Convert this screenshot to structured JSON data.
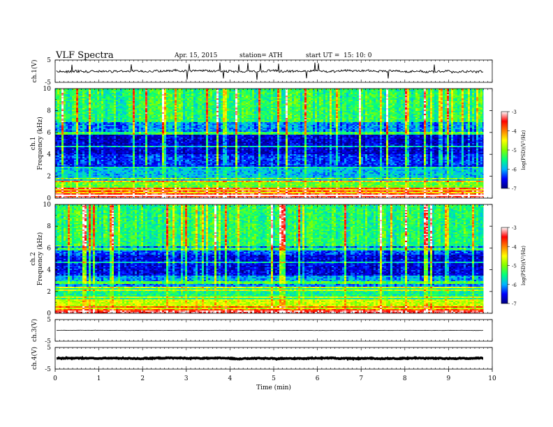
{
  "header": {
    "title": "VLF Spectra",
    "date": "Apr. 15, 2015",
    "station": "station= ATH",
    "start_label": "start  UT  =",
    "start_time": "15: 10: 0"
  },
  "colorbar": {
    "label": "log(PSD)(V²/Hz)",
    "ticks": [
      "-3",
      "-4",
      "-5",
      "-6",
      "-7"
    ],
    "range": [
      -7,
      -3
    ],
    "colors": [
      "#000080",
      "#0000ff",
      "#00b4ff",
      "#00ff80",
      "#80ff00",
      "#ffff00",
      "#ff8000",
      "#ff0000",
      "#ffffff"
    ]
  },
  "chart_data": [
    {
      "type": "line",
      "panel": "ch1-waveform",
      "ylabel": "ch.1(V)",
      "ylim": [
        -5,
        5
      ],
      "y_ticks": [
        "5",
        "-5"
      ],
      "description_note": "",
      "series": [
        {
          "values_note": "",
          "mean": 0,
          "amplitude": 0.9
        }
      ]
    },
    {
      "type": "heatmap",
      "panel": "ch1-spectrogram",
      "ylabel": "ch.1\nFrequency (kHz)",
      "ylim": [
        0,
        10
      ],
      "y_ticks": [
        "0",
        "2",
        "4",
        "6",
        "8",
        "10"
      ],
      "bands_khz": [
        {
          "from": 0,
          "to": 0.4,
          "logpsd": -3.6
        },
        {
          "from": 0.4,
          "to": 1.0,
          "logpsd": -4.5
        },
        {
          "from": 1.0,
          "to": 1.6,
          "logpsd": -5.2
        },
        {
          "from": 1.6,
          "to": 2.8,
          "logpsd": -6.0
        },
        {
          "from": 2.8,
          "to": 4.0,
          "logpsd": -6.6
        },
        {
          "from": 4.0,
          "to": 5.8,
          "logpsd": -6.9
        },
        {
          "from": 5.8,
          "to": 7.0,
          "logpsd": -6.4
        },
        {
          "from": 7.0,
          "to": 10.0,
          "logpsd": -5.7
        }
      ]
    },
    {
      "type": "heatmap",
      "panel": "ch2-spectrogram",
      "ylabel": "ch.2\nFrequency (kHz)",
      "ylim": [
        0,
        10
      ],
      "y_ticks": [
        "0",
        "2",
        "4",
        "6",
        "8",
        "10"
      ],
      "bands_khz": [
        {
          "from": 0,
          "to": 0.3,
          "logpsd": -3.4
        },
        {
          "from": 0.3,
          "to": 1.2,
          "logpsd": -4.8
        },
        {
          "from": 1.2,
          "to": 2.4,
          "logpsd": -5.6
        },
        {
          "from": 2.4,
          "to": 3.4,
          "logpsd": -6.2
        },
        {
          "from": 3.4,
          "to": 5.4,
          "logpsd": -6.8
        },
        {
          "from": 5.4,
          "to": 6.2,
          "logpsd": -6.5
        },
        {
          "from": 6.2,
          "to": 10.0,
          "logpsd": -5.7
        }
      ]
    },
    {
      "type": "line",
      "panel": "ch3-waveform",
      "ylabel": "ch.3(V)",
      "ylim": [
        -5,
        5
      ],
      "y_ticks": [
        "5",
        "-5"
      ],
      "series": [
        {
          "mean": 0,
          "amplitude": 0.1
        }
      ]
    },
    {
      "type": "line",
      "panel": "ch4-waveform",
      "ylabel": "ch.4(V)",
      "ylim": [
        -5,
        5
      ],
      "y_ticks": [
        "5",
        "-5"
      ],
      "series": [
        {
          "mean": 0,
          "amplitude": 0.4
        }
      ]
    }
  ],
  "xaxis": {
    "label": "Time  (min)",
    "range": [
      0,
      10
    ],
    "ticks": [
      "0",
      "1",
      "2",
      "3",
      "4",
      "5",
      "6",
      "7",
      "8",
      "9",
      "10"
    ],
    "data_end": 9.8
  }
}
